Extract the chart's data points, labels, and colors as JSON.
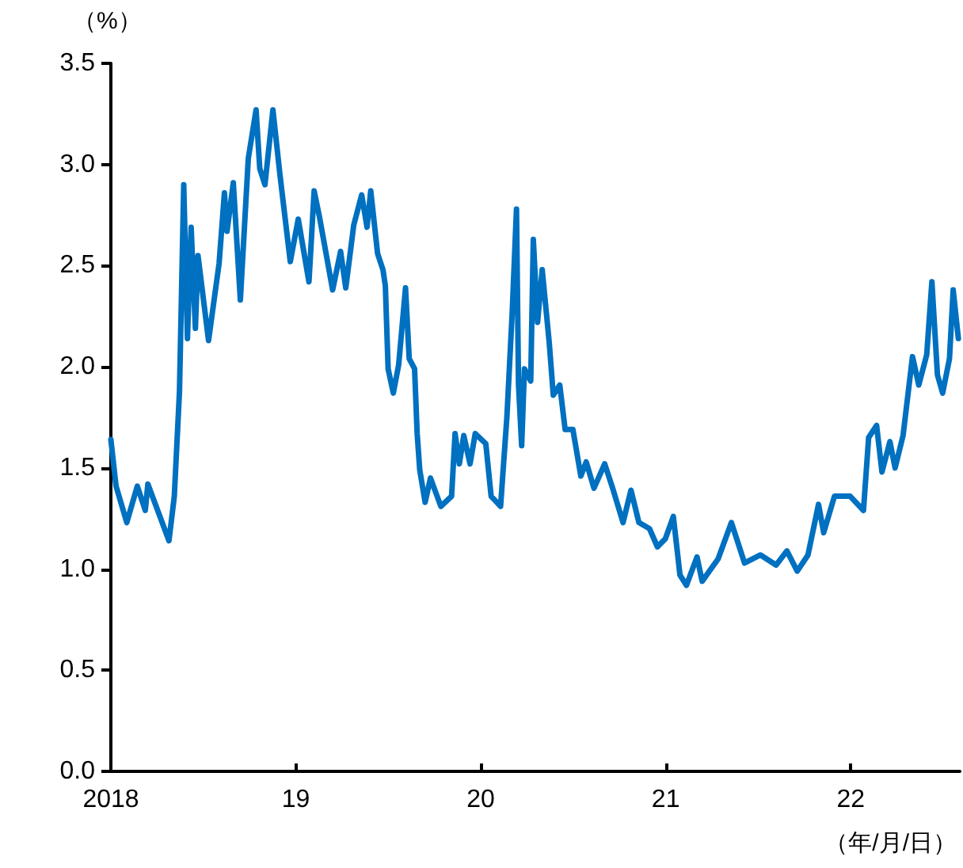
{
  "chart_data": {
    "type": "line",
    "ylabel": "（%）",
    "xlabel": "（年/月/日）",
    "xlim": [
      2018,
      2022.59
    ],
    "xticks": [
      {
        "value": 2018,
        "label": "2018"
      },
      {
        "value": 2019,
        "label": "19"
      },
      {
        "value": 2020,
        "label": "20"
      },
      {
        "value": 2021,
        "label": "21"
      },
      {
        "value": 2022,
        "label": "22"
      }
    ],
    "ylim": [
      0,
      3.5
    ],
    "yticks": [
      {
        "value": 0,
        "label": "0.0"
      },
      0.5,
      {
        "value": 1,
        "label": "1.0"
      },
      1.5,
      {
        "value": 2,
        "label": "2.0"
      },
      2.5,
      {
        "value": 3,
        "label": "3.0"
      },
      3.5
    ],
    "marker": "none",
    "line_style": "solid",
    "series": [
      {
        "color": "#0070c0",
        "x": [
          2018,
          2018.028,
          2018.086,
          2018.143,
          2018.186,
          2018.2,
          2018.257,
          2018.314,
          2018.343,
          2018.371,
          2018.394,
          2018.414,
          2018.434,
          2018.457,
          2018.471,
          2018.528,
          2018.585,
          2018.614,
          2018.628,
          2018.662,
          2018.7,
          2018.743,
          2018.785,
          2018.805,
          2018.833,
          2018.876,
          2018.914,
          2018.97,
          2019.013,
          2019.071,
          2019.099,
          2019.128,
          2019.199,
          2019.242,
          2019.27,
          2019.313,
          2019.356,
          2019.385,
          2019.405,
          2019.442,
          2019.471,
          2019.484,
          2019.499,
          2019.527,
          2019.556,
          2019.593,
          2019.613,
          2019.642,
          2019.656,
          2019.67,
          2019.699,
          2019.728,
          2019.784,
          2019.842,
          2019.861,
          2019.884,
          2019.908,
          2019.942,
          2019.97,
          2020.027,
          2020.056,
          2020.107,
          2020.141,
          2020.17,
          2020.193,
          2020.204,
          2020.221,
          2020.236,
          2020.27,
          2020.284,
          2020.307,
          2020.332,
          2020.37,
          2020.392,
          2020.427,
          2020.456,
          2020.498,
          2020.541,
          2020.57,
          2020.612,
          2020.67,
          2020.713,
          2020.769,
          2020.812,
          2020.855,
          2020.912,
          2020.955,
          2020.998,
          2021.041,
          2021.077,
          2021.112,
          2021.169,
          2021.197,
          2021.283,
          2021.355,
          2021.426,
          2021.512,
          2021.597,
          2021.655,
          2021.711,
          2021.769,
          2021.826,
          2021.854,
          2021.912,
          2021.997,
          2022.069,
          2022.097,
          2022.14,
          2022.169,
          2022.212,
          2022.24,
          2022.283,
          2022.334,
          2022.368,
          2022.411,
          2022.439,
          2022.469,
          2022.497,
          2022.534,
          2022.554,
          2022.582
        ],
        "values": [
          1.64,
          1.41,
          1.23,
          1.41,
          1.29,
          1.42,
          1.28,
          1.14,
          1.36,
          1.88,
          2.9,
          2.14,
          2.69,
          2.19,
          2.55,
          2.13,
          2.51,
          2.86,
          2.67,
          2.91,
          2.33,
          3.03,
          3.27,
          2.98,
          2.9,
          3.27,
          2.95,
          2.52,
          2.73,
          2.42,
          2.87,
          2.74,
          2.38,
          2.57,
          2.39,
          2.7,
          2.85,
          2.69,
          2.87,
          2.56,
          2.48,
          2.4,
          1.99,
          1.87,
          2.01,
          2.39,
          2.04,
          1.99,
          1.67,
          1.49,
          1.33,
          1.45,
          1.31,
          1.36,
          1.67,
          1.52,
          1.66,
          1.52,
          1.67,
          1.62,
          1.36,
          1.31,
          1.75,
          2.27,
          2.78,
          1.91,
          1.61,
          1.99,
          1.93,
          2.63,
          2.22,
          2.48,
          2.12,
          1.86,
          1.91,
          1.69,
          1.69,
          1.46,
          1.53,
          1.4,
          1.52,
          1.4,
          1.23,
          1.39,
          1.23,
          1.2,
          1.11,
          1.15,
          1.26,
          0.97,
          0.92,
          1.06,
          0.94,
          1.05,
          1.23,
          1.03,
          1.07,
          1.02,
          1.09,
          0.99,
          1.07,
          1.32,
          1.18,
          1.36,
          1.36,
          1.29,
          1.65,
          1.71,
          1.48,
          1.63,
          1.5,
          1.66,
          2.05,
          1.91,
          2.06,
          2.42,
          1.96,
          1.87,
          2.04,
          2.38,
          2.14
        ]
      }
    ]
  }
}
